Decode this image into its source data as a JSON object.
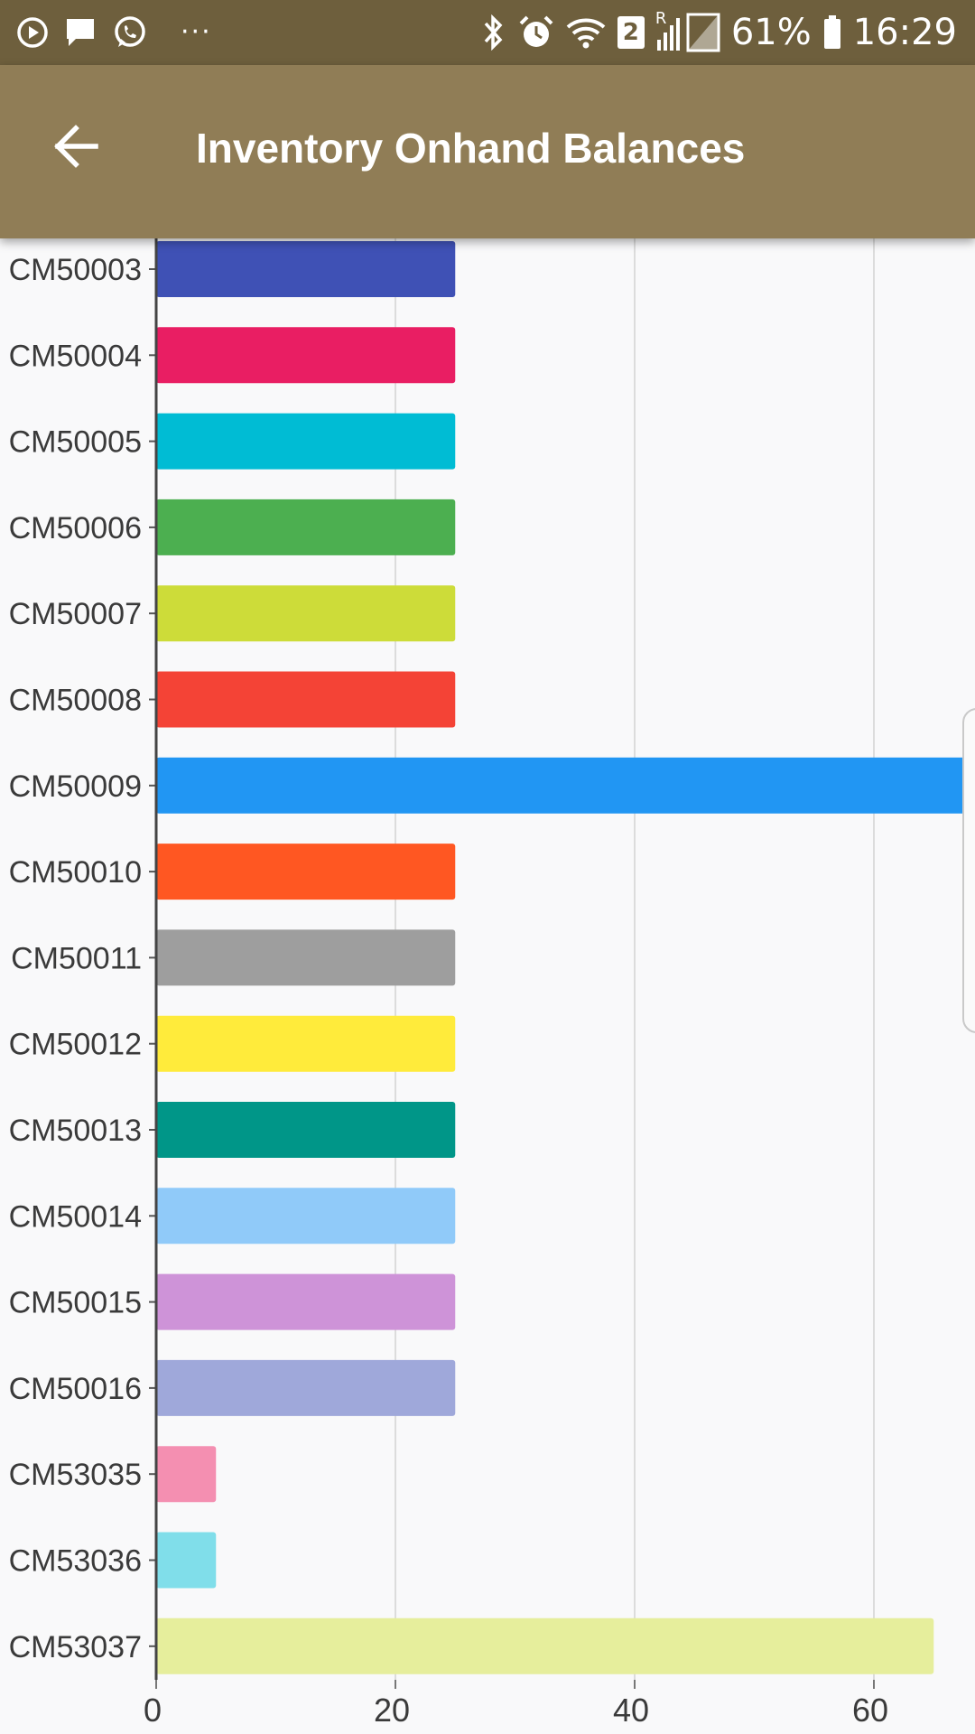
{
  "status_bar": {
    "battery": "61%",
    "time": "16:29",
    "sim_badge": "2",
    "roaming": "R",
    "more": "···",
    "icons": [
      "play-circle-icon",
      "chat-icon",
      "whatsapp-icon",
      "more-icon",
      "bluetooth-icon",
      "alarm-icon",
      "wifi-icon",
      "sim-2-icon",
      "signal-icon",
      "battery-icon"
    ]
  },
  "app_bar": {
    "title": "Inventory Onhand Balances",
    "back_icon": "arrow-back-icon"
  },
  "colors": {
    "status_bar": "#6e5f3d",
    "app_bar": "#907d56",
    "background": "#f9f9fa"
  },
  "chart_data": {
    "type": "bar",
    "orientation": "horizontal",
    "categories": [
      "CM50003",
      "CM50004",
      "CM50005",
      "CM50006",
      "CM50007",
      "CM50008",
      "CM50009",
      "CM50010",
      "CM50011",
      "CM50012",
      "CM50013",
      "CM50014",
      "CM50015",
      "CM50016",
      "CM53035",
      "CM53036",
      "CM53037"
    ],
    "values": [
      25,
      25,
      25,
      25,
      25,
      25,
      68,
      25,
      25,
      25,
      25,
      25,
      25,
      25,
      5,
      5,
      65
    ],
    "colors": [
      "#3f51b5",
      "#e91e63",
      "#00bcd4",
      "#4caf50",
      "#cddc39",
      "#f44336",
      "#2196f3",
      "#ff5722",
      "#9e9e9e",
      "#ffeb3b",
      "#009688",
      "#90caf9",
      "#ce93d8",
      "#9fa8da",
      "#f48fb1",
      "#80deea",
      "#e6ee9c"
    ],
    "x_ticks": [
      0,
      20,
      40,
      60
    ],
    "xlim": [
      0,
      68
    ],
    "grid": true,
    "title": "",
    "xlabel": "",
    "ylabel": ""
  }
}
